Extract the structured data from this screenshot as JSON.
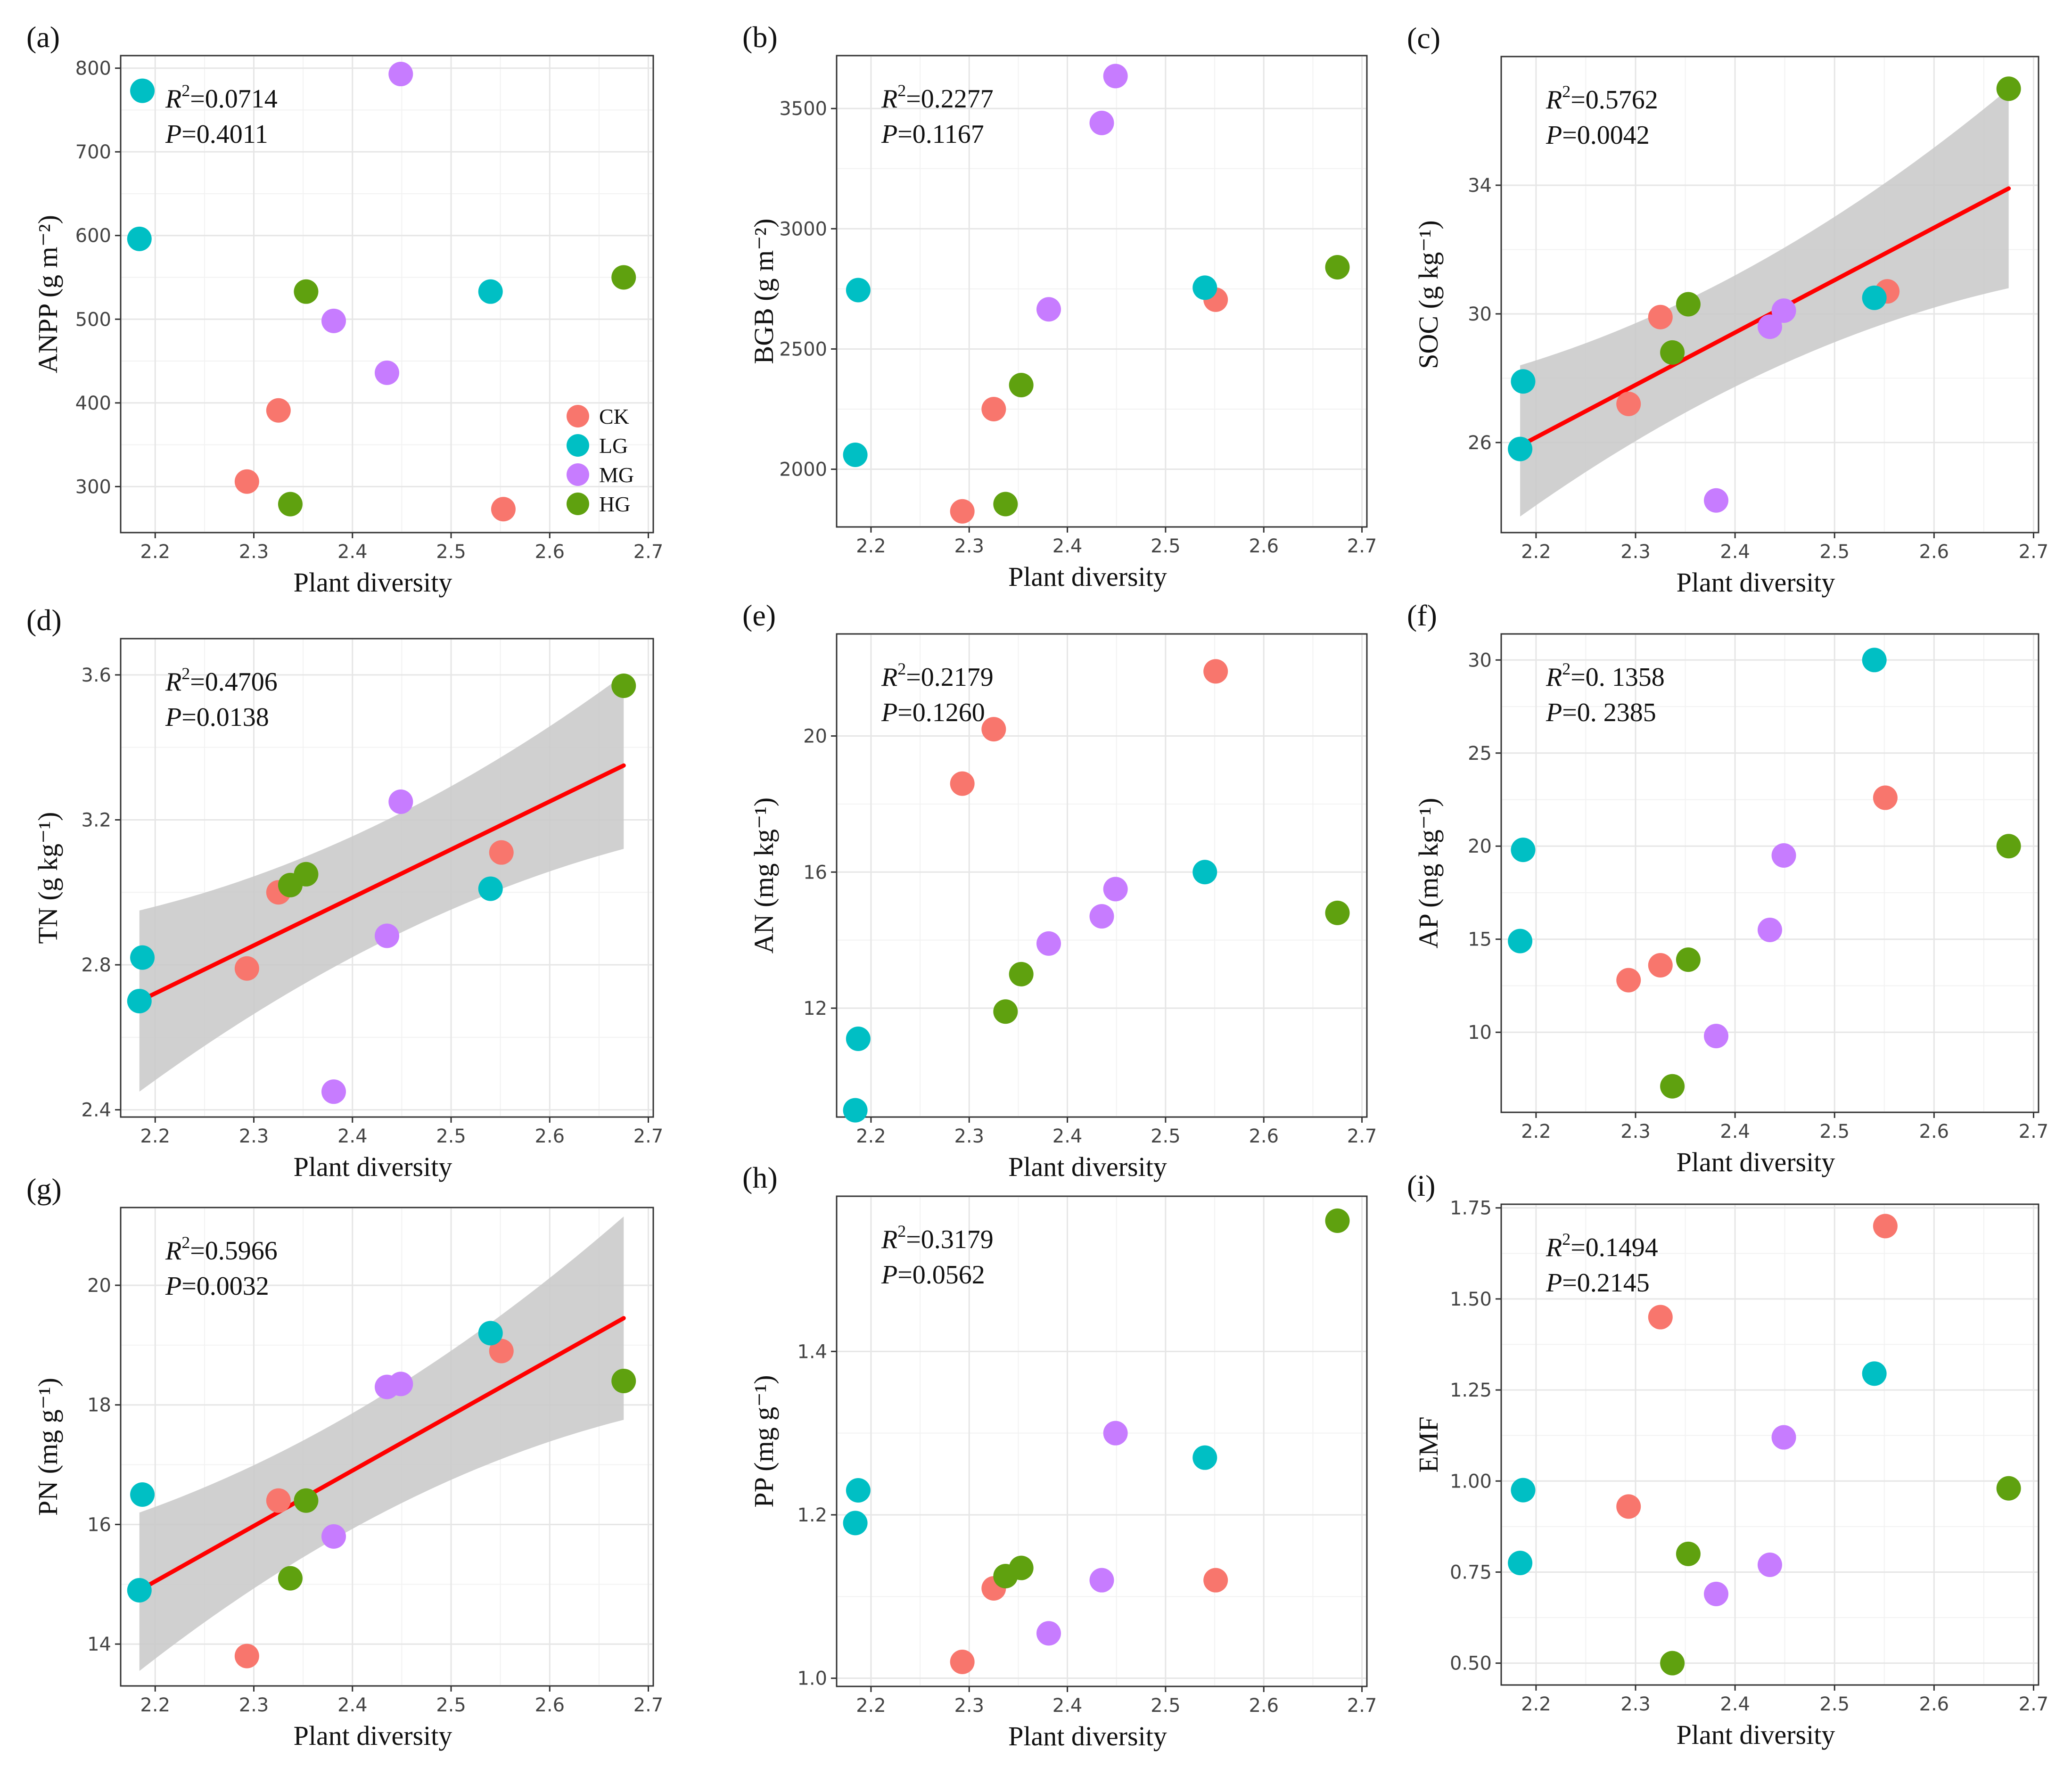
{
  "colors": {
    "CK": "#f8766d",
    "LG": "#00bfc4",
    "MG": "#c77cff",
    "HG": "#5fa10f",
    "fit": "#ff0000",
    "band": "#c8c8c8"
  },
  "legend": {
    "items": [
      {
        "group": "CK",
        "label": "CK"
      },
      {
        "group": "LG",
        "label": "LG"
      },
      {
        "group": "MG",
        "label": "MG"
      },
      {
        "group": "HG",
        "label": "HG"
      }
    ]
  },
  "chart_data": [
    {
      "type": "scatter",
      "letter": "(a)",
      "xlabel": "Plant diversity",
      "ylabel": "ANPP (g m⁻²)",
      "stats": {
        "r2_label": "R",
        "r2_sup": "2",
        "r2_value": "=0.0714",
        "p_label": "P",
        "p_value": "=0.4011"
      },
      "xlim": [
        2.165,
        2.705
      ],
      "ylim": [
        245,
        815
      ],
      "xticks": [
        2.2,
        2.3,
        2.4,
        2.5,
        2.6,
        2.7
      ],
      "xtick_labels": [
        "2.2",
        "2.3",
        "2.4",
        "2.5",
        "2.6",
        "2.7"
      ],
      "yticks": [
        300,
        400,
        500,
        600,
        700,
        800
      ],
      "ytick_labels": [
        "300",
        "400",
        "500",
        "600",
        "700",
        "800"
      ],
      "fit": null,
      "show_legend": true,
      "points": [
        {
          "g": "CK",
          "x": 2.293,
          "y": 306
        },
        {
          "g": "CK",
          "x": 2.325,
          "y": 391
        },
        {
          "g": "CK",
          "x": 2.553,
          "y": 273
        },
        {
          "g": "LG",
          "x": 2.187,
          "y": 773
        },
        {
          "g": "LG",
          "x": 2.184,
          "y": 596
        },
        {
          "g": "LG",
          "x": 2.54,
          "y": 533
        },
        {
          "g": "MG",
          "x": 2.449,
          "y": 793
        },
        {
          "g": "MG",
          "x": 2.381,
          "y": 498
        },
        {
          "g": "MG",
          "x": 2.435,
          "y": 436
        },
        {
          "g": "HG",
          "x": 2.353,
          "y": 533
        },
        {
          "g": "HG",
          "x": 2.337,
          "y": 279
        },
        {
          "g": "HG",
          "x": 2.675,
          "y": 550
        }
      ]
    },
    {
      "type": "scatter",
      "letter": "(b)",
      "xlabel": "Plant diversity",
      "ylabel": "BGB (g m⁻²)",
      "stats": {
        "r2_label": "R",
        "r2_sup": "2",
        "r2_value": "=0.2277",
        "p_label": "P",
        "p_value": "=0.1167"
      },
      "xlim": [
        2.165,
        2.705
      ],
      "ylim": [
        1760,
        3720
      ],
      "xticks": [
        2.2,
        2.3,
        2.4,
        2.5,
        2.6,
        2.7
      ],
      "xtick_labels": [
        "2.2",
        "2.3",
        "2.4",
        "2.5",
        "2.6",
        "2.7"
      ],
      "yticks": [
        2000,
        2500,
        3000,
        3500
      ],
      "ytick_labels": [
        "2000",
        "2500",
        "3000",
        "3500"
      ],
      "fit": null,
      "show_legend": false,
      "points": [
        {
          "g": "CK",
          "x": 2.293,
          "y": 1825
        },
        {
          "g": "CK",
          "x": 2.325,
          "y": 2250
        },
        {
          "g": "CK",
          "x": 2.551,
          "y": 2705
        },
        {
          "g": "LG",
          "x": 2.187,
          "y": 2745
        },
        {
          "g": "LG",
          "x": 2.184,
          "y": 2060
        },
        {
          "g": "LG",
          "x": 2.54,
          "y": 2755
        },
        {
          "g": "MG",
          "x": 2.449,
          "y": 3635
        },
        {
          "g": "MG",
          "x": 2.435,
          "y": 3440
        },
        {
          "g": "MG",
          "x": 2.381,
          "y": 2665
        },
        {
          "g": "HG",
          "x": 2.353,
          "y": 2350
        },
        {
          "g": "HG",
          "x": 2.337,
          "y": 1855
        },
        {
          "g": "HG",
          "x": 2.675,
          "y": 2840
        }
      ]
    },
    {
      "type": "scatter",
      "letter": "(c)",
      "xlabel": "Plant diversity",
      "ylabel": "SOC (g kg⁻¹)",
      "stats": {
        "r2_label": "R",
        "r2_sup": "2",
        "r2_value": "=0.5762",
        "p_label": "P",
        "p_value": "=0.0042"
      },
      "xlim": [
        2.165,
        2.705
      ],
      "ylim": [
        23.2,
        38.0
      ],
      "xticks": [
        2.2,
        2.3,
        2.4,
        2.5,
        2.6,
        2.7
      ],
      "xtick_labels": [
        "2.2",
        "2.3",
        "2.4",
        "2.5",
        "2.6",
        "2.7"
      ],
      "yticks": [
        26,
        30,
        34
      ],
      "ytick_labels": [
        "26",
        "30",
        "34"
      ],
      "fit": {
        "x": [
          2.184,
          2.675
        ],
        "y": [
          25.9,
          33.9
        ],
        "band_lo": [
          23.7,
          30.8
        ],
        "band_hi": [
          28.4,
          37.0
        ]
      },
      "show_legend": false,
      "points": [
        {
          "g": "CK",
          "x": 2.293,
          "y": 27.2
        },
        {
          "g": "CK",
          "x": 2.325,
          "y": 29.9
        },
        {
          "g": "CK",
          "x": 2.553,
          "y": 30.7
        },
        {
          "g": "LG",
          "x": 2.187,
          "y": 27.9
        },
        {
          "g": "LG",
          "x": 2.184,
          "y": 25.8
        },
        {
          "g": "LG",
          "x": 2.54,
          "y": 30.5
        },
        {
          "g": "MG",
          "x": 2.381,
          "y": 24.2
        },
        {
          "g": "MG",
          "x": 2.435,
          "y": 29.6
        },
        {
          "g": "MG",
          "x": 2.449,
          "y": 30.1
        },
        {
          "g": "HG",
          "x": 2.337,
          "y": 28.8
        },
        {
          "g": "HG",
          "x": 2.353,
          "y": 30.3
        },
        {
          "g": "HG",
          "x": 2.675,
          "y": 37.0
        }
      ]
    },
    {
      "type": "scatter",
      "letter": "(d)",
      "xlabel": "Plant diversity",
      "ylabel": "TN (g kg⁻¹)",
      "stats": {
        "r2_label": "R",
        "r2_sup": "2",
        "r2_value": "=0.4706",
        "p_label": "P",
        "p_value": "=0.0138"
      },
      "xlim": [
        2.165,
        2.705
      ],
      "ylim": [
        2.38,
        3.7
      ],
      "xticks": [
        2.2,
        2.3,
        2.4,
        2.5,
        2.6,
        2.7
      ],
      "xtick_labels": [
        "2.2",
        "2.3",
        "2.4",
        "2.5",
        "2.6",
        "2.7"
      ],
      "yticks": [
        2.4,
        2.8,
        3.2,
        3.6
      ],
      "ytick_labels": [
        "2.4",
        "2.8",
        "3.2",
        "3.6"
      ],
      "fit": {
        "x": [
          2.184,
          2.675
        ],
        "y": [
          2.7,
          3.35
        ],
        "band_lo": [
          2.45,
          3.12
        ],
        "band_hi": [
          2.95,
          3.6
        ]
      },
      "show_legend": false,
      "points": [
        {
          "g": "CK",
          "x": 2.293,
          "y": 2.79
        },
        {
          "g": "CK",
          "x": 2.325,
          "y": 3.0
        },
        {
          "g": "CK",
          "x": 2.551,
          "y": 3.11
        },
        {
          "g": "LG",
          "x": 2.187,
          "y": 2.82
        },
        {
          "g": "LG",
          "x": 2.184,
          "y": 2.7
        },
        {
          "g": "LG",
          "x": 2.54,
          "y": 3.01
        },
        {
          "g": "MG",
          "x": 2.381,
          "y": 2.45
        },
        {
          "g": "MG",
          "x": 2.435,
          "y": 2.88
        },
        {
          "g": "MG",
          "x": 2.449,
          "y": 3.25
        },
        {
          "g": "HG",
          "x": 2.337,
          "y": 3.02
        },
        {
          "g": "HG",
          "x": 2.353,
          "y": 3.05
        },
        {
          "g": "HG",
          "x": 2.675,
          "y": 3.57
        }
      ]
    },
    {
      "type": "scatter",
      "letter": "(e)",
      "xlabel": "Plant diversity",
      "ylabel": "AN (mg kg⁻¹)",
      "stats": {
        "r2_label": "R",
        "r2_sup": "2",
        "r2_value": "=0.2179",
        "p_label": "P",
        "p_value": "=0.1260"
      },
      "xlim": [
        2.165,
        2.705
      ],
      "ylim": [
        8.8,
        23.0
      ],
      "xticks": [
        2.2,
        2.3,
        2.4,
        2.5,
        2.6,
        2.7
      ],
      "xtick_labels": [
        "2.2",
        "2.3",
        "2.4",
        "2.5",
        "2.6",
        "2.7"
      ],
      "yticks": [
        12,
        16,
        20
      ],
      "ytick_labels": [
        "12",
        "16",
        "20"
      ],
      "fit": null,
      "show_legend": false,
      "points": [
        {
          "g": "CK",
          "x": 2.293,
          "y": 18.6
        },
        {
          "g": "CK",
          "x": 2.325,
          "y": 20.2
        },
        {
          "g": "CK",
          "x": 2.551,
          "y": 21.9
        },
        {
          "g": "LG",
          "x": 2.187,
          "y": 11.1
        },
        {
          "g": "LG",
          "x": 2.184,
          "y": 9.0
        },
        {
          "g": "LG",
          "x": 2.54,
          "y": 16.0
        },
        {
          "g": "MG",
          "x": 2.381,
          "y": 13.9
        },
        {
          "g": "MG",
          "x": 2.435,
          "y": 14.7
        },
        {
          "g": "MG",
          "x": 2.449,
          "y": 15.5
        },
        {
          "g": "HG",
          "x": 2.337,
          "y": 11.9
        },
        {
          "g": "HG",
          "x": 2.353,
          "y": 13.0
        },
        {
          "g": "HG",
          "x": 2.675,
          "y": 14.8
        }
      ]
    },
    {
      "type": "scatter",
      "letter": "(f)",
      "xlabel": "Plant diversity",
      "ylabel": "AP (mg kg⁻¹)",
      "stats": {
        "r2_label": "R",
        "r2_sup": "2",
        "r2_value": "=0. 1358",
        "p_label": "P",
        "p_value": "=0. 2385"
      },
      "xlim": [
        2.165,
        2.705
      ],
      "ylim": [
        5.7,
        31.4
      ],
      "xticks": [
        2.2,
        2.3,
        2.4,
        2.5,
        2.6,
        2.7
      ],
      "xtick_labels": [
        "2.2",
        "2.3",
        "2.4",
        "2.5",
        "2.6",
        "2.7"
      ],
      "yticks": [
        10,
        15,
        20,
        25,
        30
      ],
      "ytick_labels": [
        "10",
        "15",
        "20",
        "25",
        "30"
      ],
      "fit": null,
      "show_legend": false,
      "points": [
        {
          "g": "CK",
          "x": 2.293,
          "y": 12.8
        },
        {
          "g": "CK",
          "x": 2.325,
          "y": 13.6
        },
        {
          "g": "CK",
          "x": 2.551,
          "y": 22.6
        },
        {
          "g": "LG",
          "x": 2.187,
          "y": 19.8
        },
        {
          "g": "LG",
          "x": 2.184,
          "y": 14.9
        },
        {
          "g": "LG",
          "x": 2.54,
          "y": 30.0
        },
        {
          "g": "MG",
          "x": 2.381,
          "y": 9.8
        },
        {
          "g": "MG",
          "x": 2.435,
          "y": 15.5
        },
        {
          "g": "MG",
          "x": 2.449,
          "y": 19.5
        },
        {
          "g": "HG",
          "x": 2.337,
          "y": 7.1
        },
        {
          "g": "HG",
          "x": 2.353,
          "y": 13.9
        },
        {
          "g": "HG",
          "x": 2.675,
          "y": 20.0
        }
      ]
    },
    {
      "type": "scatter",
      "letter": "(g)",
      "xlabel": "Plant diversity",
      "ylabel": "PN (mg g⁻¹)",
      "stats": {
        "r2_label": "R",
        "r2_sup": "2",
        "r2_value": "=0.5966",
        "p_label": "P",
        "p_value": "=0.0032"
      },
      "xlim": [
        2.165,
        2.705
      ],
      "ylim": [
        13.3,
        21.3
      ],
      "xticks": [
        2.2,
        2.3,
        2.4,
        2.5,
        2.6,
        2.7
      ],
      "xtick_labels": [
        "2.2",
        "2.3",
        "2.4",
        "2.5",
        "2.6",
        "2.7"
      ],
      "yticks": [
        14,
        16,
        18,
        20
      ],
      "ytick_labels": [
        "14",
        "16",
        "18",
        "20"
      ],
      "fit": {
        "x": [
          2.184,
          2.675
        ],
        "y": [
          14.9,
          19.45
        ],
        "band_lo": [
          13.55,
          17.75
        ],
        "band_hi": [
          16.2,
          21.15
        ]
      },
      "show_legend": false,
      "points": [
        {
          "g": "CK",
          "x": 2.293,
          "y": 13.8
        },
        {
          "g": "CK",
          "x": 2.325,
          "y": 16.4
        },
        {
          "g": "CK",
          "x": 2.551,
          "y": 18.9
        },
        {
          "g": "LG",
          "x": 2.187,
          "y": 16.5
        },
        {
          "g": "LG",
          "x": 2.184,
          "y": 14.9
        },
        {
          "g": "LG",
          "x": 2.54,
          "y": 19.2
        },
        {
          "g": "MG",
          "x": 2.381,
          "y": 15.8
        },
        {
          "g": "MG",
          "x": 2.435,
          "y": 18.3
        },
        {
          "g": "MG",
          "x": 2.449,
          "y": 18.35
        },
        {
          "g": "HG",
          "x": 2.337,
          "y": 15.1
        },
        {
          "g": "HG",
          "x": 2.353,
          "y": 16.4
        },
        {
          "g": "HG",
          "x": 2.675,
          "y": 18.4
        }
      ]
    },
    {
      "type": "scatter",
      "letter": "(h)",
      "xlabel": "Plant diversity",
      "ylabel": "PP (mg g⁻¹)",
      "stats": {
        "r2_label": "R",
        "r2_sup": "2",
        "r2_value": "=0.3179",
        "p_label": "P",
        "p_value": "=0.0562"
      },
      "xlim": [
        2.165,
        2.705
      ],
      "ylim": [
        0.99,
        1.59
      ],
      "xticks": [
        2.2,
        2.3,
        2.4,
        2.5,
        2.6,
        2.7
      ],
      "xtick_labels": [
        "2.2",
        "2.3",
        "2.4",
        "2.5",
        "2.6",
        "2.7"
      ],
      "yticks": [
        1.0,
        1.2,
        1.4
      ],
      "ytick_labels": [
        "1.0",
        "1.2",
        "1.4"
      ],
      "fit": null,
      "show_legend": false,
      "points": [
        {
          "g": "CK",
          "x": 2.293,
          "y": 1.02
        },
        {
          "g": "CK",
          "x": 2.325,
          "y": 1.11
        },
        {
          "g": "CK",
          "x": 2.551,
          "y": 1.12
        },
        {
          "g": "LG",
          "x": 2.187,
          "y": 1.23
        },
        {
          "g": "LG",
          "x": 2.184,
          "y": 1.19
        },
        {
          "g": "LG",
          "x": 2.54,
          "y": 1.27
        },
        {
          "g": "MG",
          "x": 2.381,
          "y": 1.055
        },
        {
          "g": "MG",
          "x": 2.435,
          "y": 1.12
        },
        {
          "g": "MG",
          "x": 2.449,
          "y": 1.3
        },
        {
          "g": "HG",
          "x": 2.337,
          "y": 1.125
        },
        {
          "g": "HG",
          "x": 2.353,
          "y": 1.135
        },
        {
          "g": "HG",
          "x": 2.675,
          "y": 1.56
        }
      ]
    },
    {
      "type": "scatter",
      "letter": "(i)",
      "xlabel": "Plant diversity",
      "ylabel": "EMF",
      "stats": {
        "r2_label": "R",
        "r2_sup": "2",
        "r2_value": "=0.1494",
        "p_label": "P",
        "p_value": "=0.2145"
      },
      "xlim": [
        2.165,
        2.705
      ],
      "ylim": [
        0.44,
        1.76
      ],
      "xticks": [
        2.2,
        2.3,
        2.4,
        2.5,
        2.6,
        2.7
      ],
      "xtick_labels": [
        "2.2",
        "2.3",
        "2.4",
        "2.5",
        "2.6",
        "2.7"
      ],
      "yticks": [
        0.5,
        0.75,
        1.0,
        1.25,
        1.5,
        1.75
      ],
      "ytick_labels": [
        "0.50",
        "0.75",
        "1.00",
        "1.25",
        "1.50",
        "1.75"
      ],
      "fit": null,
      "show_legend": false,
      "points": [
        {
          "g": "CK",
          "x": 2.293,
          "y": 0.93
        },
        {
          "g": "CK",
          "x": 2.325,
          "y": 1.45
        },
        {
          "g": "CK",
          "x": 2.551,
          "y": 1.7
        },
        {
          "g": "LG",
          "x": 2.187,
          "y": 0.975
        },
        {
          "g": "LG",
          "x": 2.184,
          "y": 0.775
        },
        {
          "g": "LG",
          "x": 2.54,
          "y": 1.295
        },
        {
          "g": "MG",
          "x": 2.381,
          "y": 0.69
        },
        {
          "g": "MG",
          "x": 2.435,
          "y": 0.77
        },
        {
          "g": "MG",
          "x": 2.449,
          "y": 1.12
        },
        {
          "g": "HG",
          "x": 2.337,
          "y": 0.5
        },
        {
          "g": "HG",
          "x": 2.353,
          "y": 0.8
        },
        {
          "g": "HG",
          "x": 2.675,
          "y": 0.98
        }
      ]
    }
  ]
}
